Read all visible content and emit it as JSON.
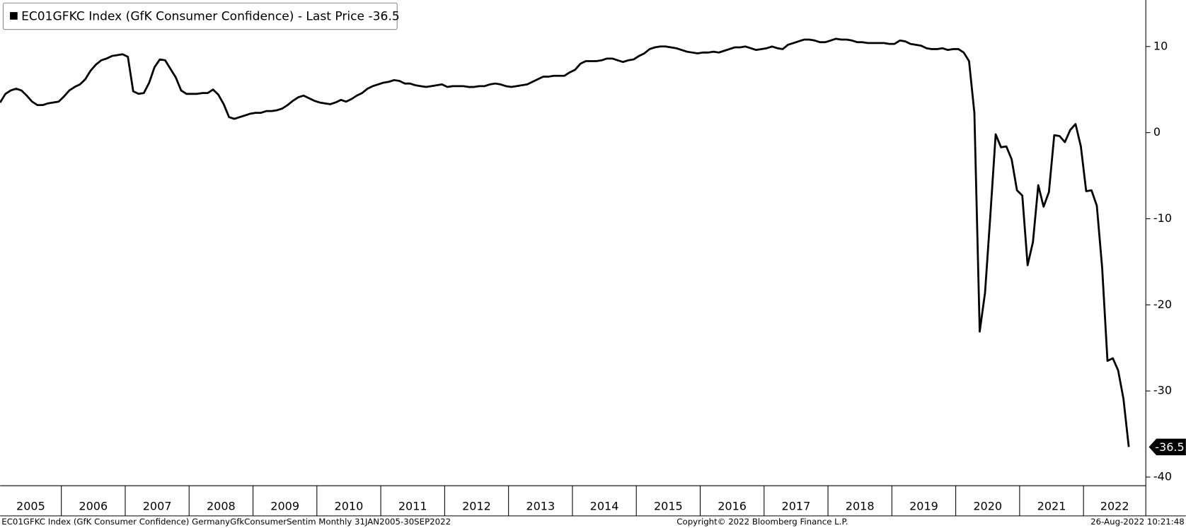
{
  "chart_data": {
    "type": "line",
    "categories": [
      "2005",
      null,
      null,
      null,
      null,
      null,
      null,
      null,
      null,
      null,
      null,
      null,
      "2006",
      null,
      null,
      null,
      null,
      null,
      null,
      null,
      null,
      null,
      null,
      null,
      "2007",
      null,
      null,
      null,
      null,
      null,
      null,
      null,
      null,
      null,
      null,
      null,
      "2008",
      null,
      null,
      null,
      null,
      null,
      null,
      null,
      null,
      null,
      null,
      null,
      "2009",
      null,
      null,
      null,
      null,
      null,
      null,
      null,
      null,
      null,
      null,
      null,
      "2010",
      null,
      null,
      null,
      null,
      null,
      null,
      null,
      null,
      null,
      null,
      null,
      "2011",
      null,
      null,
      null,
      null,
      null,
      null,
      null,
      null,
      null,
      null,
      null,
      "2012",
      null,
      null,
      null,
      null,
      null,
      null,
      null,
      null,
      null,
      null,
      null,
      "2013",
      null,
      null,
      null,
      null,
      null,
      null,
      null,
      null,
      null,
      null,
      null,
      "2014",
      null,
      null,
      null,
      null,
      null,
      null,
      null,
      null,
      null,
      null,
      null,
      "2015",
      null,
      null,
      null,
      null,
      null,
      null,
      null,
      null,
      null,
      null,
      null,
      "2016",
      null,
      null,
      null,
      null,
      null,
      null,
      null,
      null,
      null,
      null,
      null,
      "2017",
      null,
      null,
      null,
      null,
      null,
      null,
      null,
      null,
      null,
      null,
      null,
      "2018",
      null,
      null,
      null,
      null,
      null,
      null,
      null,
      null,
      null,
      null,
      null,
      "2019",
      null,
      null,
      null,
      null,
      null,
      null,
      null,
      null,
      null,
      null,
      null,
      "2020",
      null,
      null,
      null,
      null,
      null,
      null,
      null,
      null,
      null,
      null,
      null,
      "2021",
      null,
      null,
      null,
      null,
      null,
      null,
      null,
      null,
      null,
      null,
      null,
      "2022",
      null,
      null,
      null,
      null,
      null,
      null,
      null,
      null
    ],
    "series": [
      {
        "name": "EC01GFKC Index (GfK Consumer Confidence) - Last Price -36.5",
        "color": "#000000",
        "values": [
          3.5,
          4.5,
          4.9,
          5.1,
          4.9,
          4.3,
          3.6,
          3.2,
          3.2,
          3.4,
          3.5,
          3.6,
          4.2,
          4.9,
          5.3,
          5.6,
          6.2,
          7.2,
          7.9,
          8.4,
          8.6,
          8.9,
          9.0,
          9.1,
          8.8,
          4.8,
          4.5,
          4.6,
          5.8,
          7.6,
          8.5,
          8.4,
          7.4,
          6.4,
          4.9,
          4.5,
          4.5,
          4.5,
          4.6,
          4.6,
          5.0,
          4.4,
          3.3,
          1.8,
          1.6,
          1.8,
          2.0,
          2.2,
          2.3,
          2.3,
          2.5,
          2.5,
          2.6,
          2.8,
          3.2,
          3.7,
          4.1,
          4.3,
          4.0,
          3.7,
          3.5,
          3.4,
          3.3,
          3.5,
          3.8,
          3.6,
          3.9,
          4.3,
          4.6,
          5.1,
          5.4,
          5.6,
          5.8,
          5.9,
          6.1,
          6.0,
          5.7,
          5.7,
          5.5,
          5.4,
          5.3,
          5.4,
          5.5,
          5.6,
          5.3,
          5.4,
          5.4,
          5.4,
          5.3,
          5.3,
          5.4,
          5.4,
          5.6,
          5.7,
          5.6,
          5.4,
          5.3,
          5.4,
          5.5,
          5.6,
          5.9,
          6.2,
          6.5,
          6.5,
          6.6,
          6.6,
          6.6,
          7.0,
          7.3,
          8.0,
          8.3,
          8.3,
          8.3,
          8.4,
          8.6,
          8.6,
          8.4,
          8.2,
          8.4,
          8.5,
          8.9,
          9.2,
          9.7,
          9.9,
          10.0,
          10.0,
          9.9,
          9.8,
          9.6,
          9.4,
          9.3,
          9.2,
          9.3,
          9.3,
          9.4,
          9.3,
          9.5,
          9.7,
          9.9,
          9.9,
          10.0,
          9.8,
          9.6,
          9.7,
          9.8,
          10.0,
          9.8,
          9.7,
          10.2,
          10.4,
          10.6,
          10.8,
          10.8,
          10.7,
          10.5,
          10.5,
          10.7,
          10.9,
          10.8,
          10.8,
          10.7,
          10.5,
          10.5,
          10.4,
          10.4,
          10.4,
          10.4,
          10.3,
          10.3,
          10.7,
          10.6,
          10.3,
          10.2,
          10.1,
          9.8,
          9.7,
          9.7,
          9.8,
          9.6,
          9.7,
          9.7,
          9.3,
          8.3,
          2.3,
          -23.1,
          -18.6,
          -9.6,
          -0.2,
          -1.7,
          -1.6,
          -3.1,
          -6.7,
          -7.3,
          -15.4,
          -12.7,
          -6.1,
          -8.6,
          -6.9,
          -0.3,
          -0.4,
          -1.1,
          0.3,
          1.0,
          -1.6,
          -6.8,
          -6.7,
          -8.5,
          -15.7,
          -26.5,
          -26.2,
          -27.6,
          -30.9,
          -36.5
        ]
      }
    ],
    "ylim": [
      -41,
      15.4
    ],
    "yticks": [
      10,
      0,
      -10,
      -20,
      -30,
      -40
    ],
    "grid": false,
    "footnote_left": "EC01GFKC Index (GfK Consumer Confidence) GermanyGfkConsumerSentim  Monthly 31JAN2005-30SEP2022",
    "footnote_center": "Copyright© 2022 Bloomberg Finance L.P.",
    "footnote_right": "26-Aug-2022 10:21:48"
  }
}
